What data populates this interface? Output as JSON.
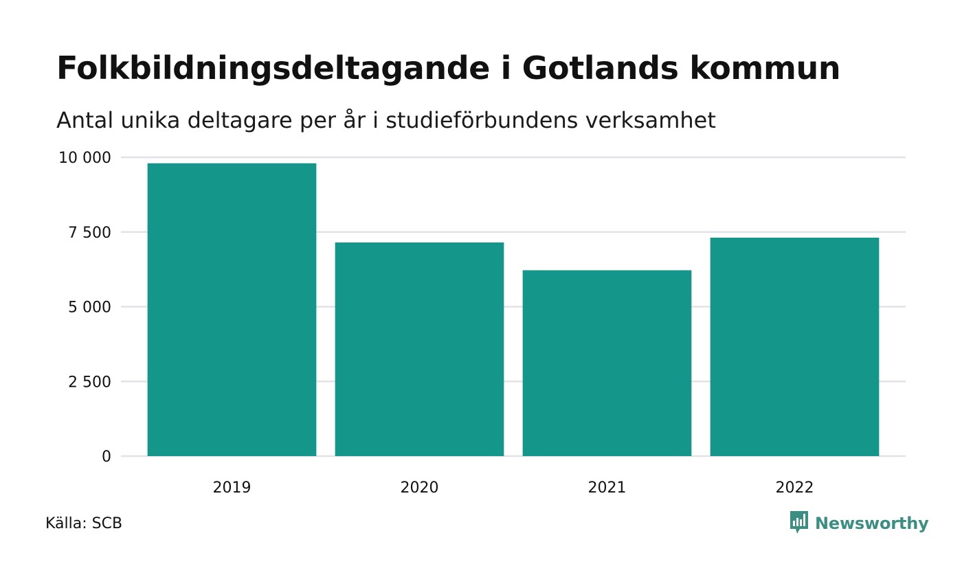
{
  "header": {
    "title": "Folkbildningsdeltagande i Gotlands kommun",
    "subtitle": "Antal unika deltagare per år i studieförbundens verksamhet"
  },
  "chart_data": {
    "type": "bar",
    "title": "Folkbildningsdeltagande i Gotlands kommun",
    "subtitle": "Antal unika deltagare per år i studieförbundens verksamhet",
    "categories": [
      "2019",
      "2020",
      "2021",
      "2022"
    ],
    "values": [
      9800,
      7150,
      6220,
      7310
    ],
    "ylim": [
      0,
      10000
    ],
    "yticks": [
      0,
      2500,
      5000,
      7500,
      10000
    ],
    "ytick_labels": [
      "0",
      "2 500",
      "5 000",
      "7 500",
      "10 000"
    ],
    "xlabel": "",
    "ylabel": "",
    "grid": true,
    "bar_color": "#14968a",
    "grid_color": "#e2e2e8",
    "legend": "none"
  },
  "footer": {
    "source": "Källa: SCB",
    "brand_name": "Newsworthy",
    "brand_icon": "newsworthy-logo-icon",
    "brand_color": "#3c8e82"
  }
}
